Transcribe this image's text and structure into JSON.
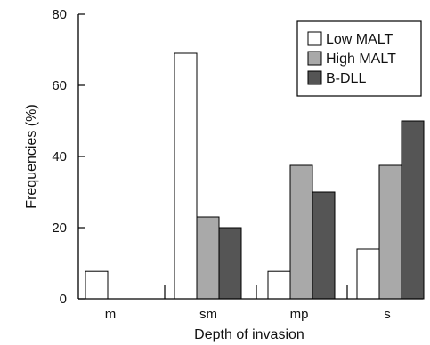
{
  "chart_data": {
    "type": "bar",
    "xlabel": "Depth of invasion",
    "ylabel": "Frequencies (%)",
    "ylim": [
      0,
      80
    ],
    "yticks": [
      0,
      20,
      40,
      60,
      80
    ],
    "categories": [
      "m",
      "sm",
      "mp",
      "s"
    ],
    "series": [
      {
        "name": "Low MALT",
        "color": "#ffffff",
        "values": [
          7.7,
          69,
          7.7,
          14
        ]
      },
      {
        "name": "High MALT",
        "color": "#a9a9a9",
        "values": [
          0,
          23,
          37.5,
          37.5
        ]
      },
      {
        "name": "B-DLL",
        "color": "#555555",
        "values": [
          0,
          20,
          30,
          50
        ]
      }
    ],
    "legend_position": "top-right",
    "grid": false
  }
}
